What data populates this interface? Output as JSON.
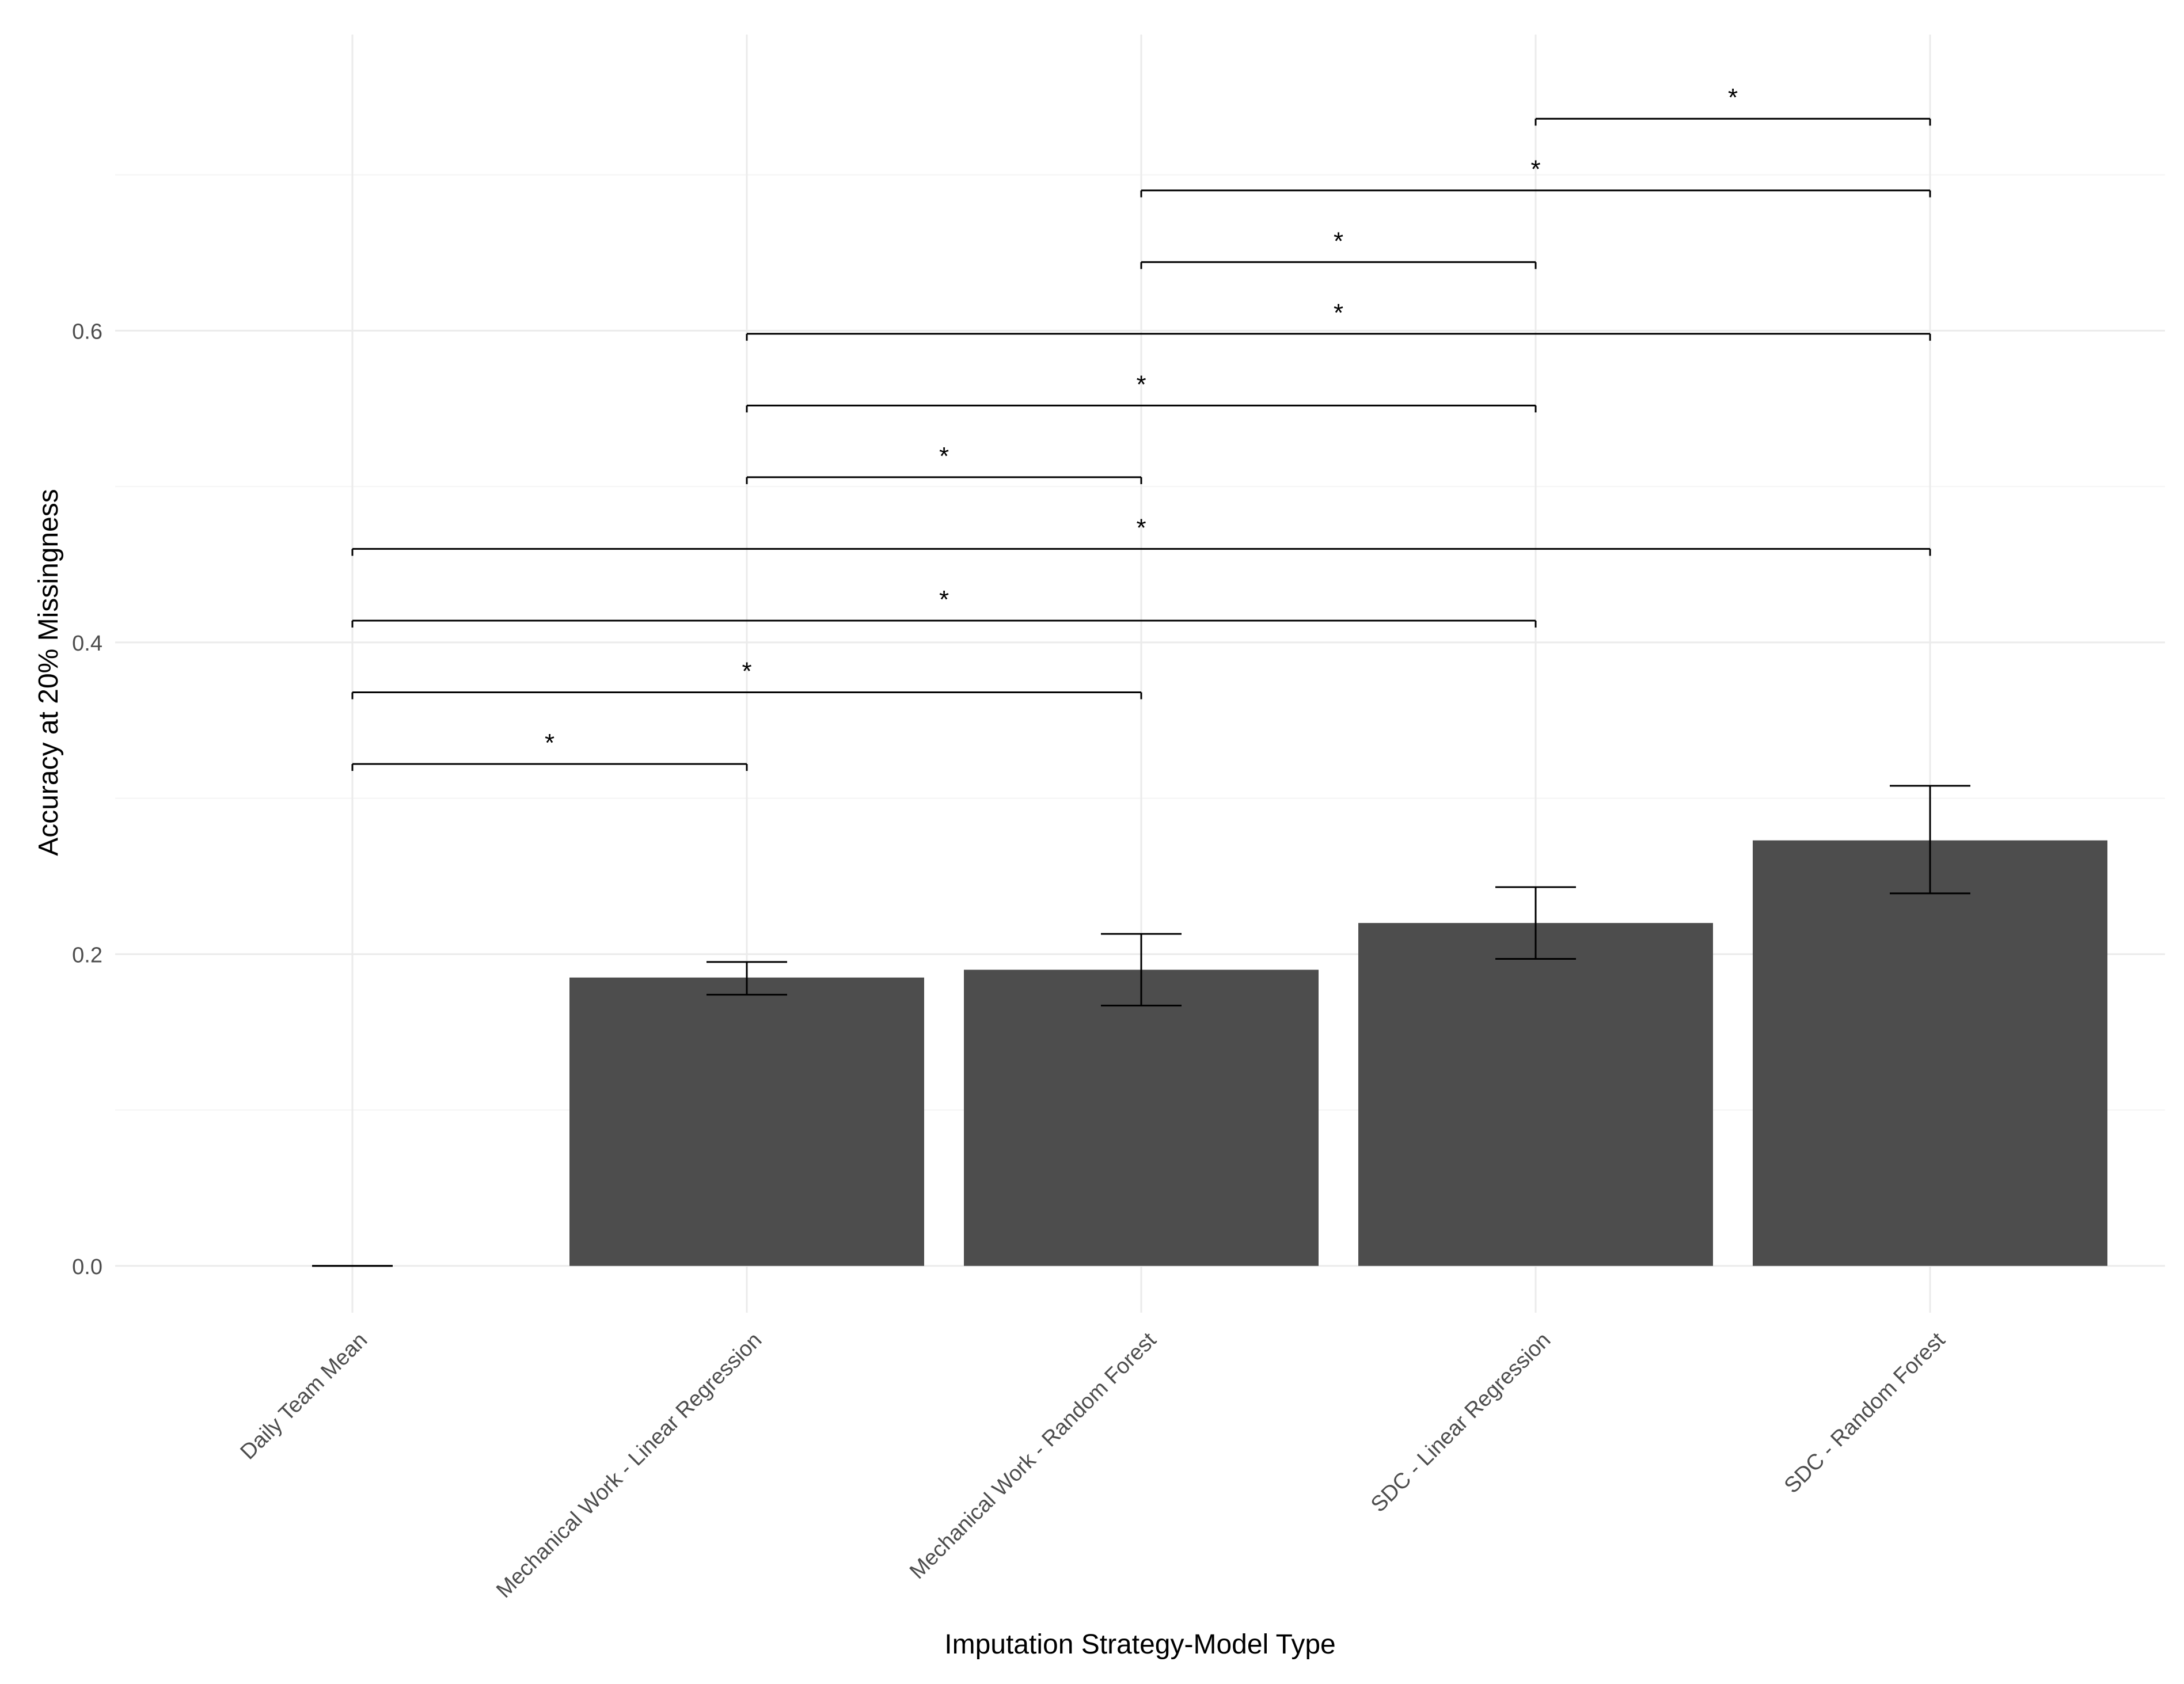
{
  "chart_data": {
    "type": "bar",
    "title": "",
    "xlabel": "Imputation Strategy-Model Type",
    "ylabel": "Accuracy at 20% Missingness",
    "categories": [
      "Daily Team Mean",
      "Mechanical Work - Linear Regression",
      "Mechanical Work - Random Forest",
      "SDC - Linear Regression",
      "SDC - Random Forest"
    ],
    "values": [
      0.0,
      0.185,
      0.19,
      0.22,
      0.273
    ],
    "error_bars": [
      {
        "low": 0.0,
        "high": 0.0
      },
      {
        "low": 0.174,
        "high": 0.195
      },
      {
        "low": 0.167,
        "high": 0.213
      },
      {
        "low": 0.197,
        "high": 0.243
      },
      {
        "low": 0.239,
        "high": 0.308
      }
    ],
    "ylim": [
      -0.03,
      0.79
    ],
    "yticks": [
      0.0,
      0.2,
      0.4,
      0.6
    ],
    "ytick_labels": [
      "0.0",
      "0.2",
      "0.4",
      "0.6"
    ],
    "grid": true,
    "legend": "none",
    "significance": [
      {
        "from": 0,
        "to": 1,
        "y": 0.322,
        "label": "*"
      },
      {
        "from": 0,
        "to": 2,
        "y": 0.368,
        "label": "*"
      },
      {
        "from": 0,
        "to": 3,
        "y": 0.414,
        "label": "*"
      },
      {
        "from": 0,
        "to": 4,
        "y": 0.46,
        "label": "*"
      },
      {
        "from": 1,
        "to": 2,
        "y": 0.506,
        "label": "*"
      },
      {
        "from": 1,
        "to": 3,
        "y": 0.552,
        "label": "*"
      },
      {
        "from": 1,
        "to": 4,
        "y": 0.598,
        "label": "*"
      },
      {
        "from": 2,
        "to": 3,
        "y": 0.644,
        "label": "*"
      },
      {
        "from": 2,
        "to": 4,
        "y": 0.69,
        "label": "*"
      },
      {
        "from": 3,
        "to": 4,
        "y": 0.736,
        "label": "*"
      }
    ],
    "colors": {
      "bar": "#4d4d4d",
      "grid_major": "#ebebeb",
      "grid_minor": "#f4f4f4",
      "axis_text": "#4d4d4d",
      "title_text": "#000000",
      "line": "#000000"
    }
  }
}
